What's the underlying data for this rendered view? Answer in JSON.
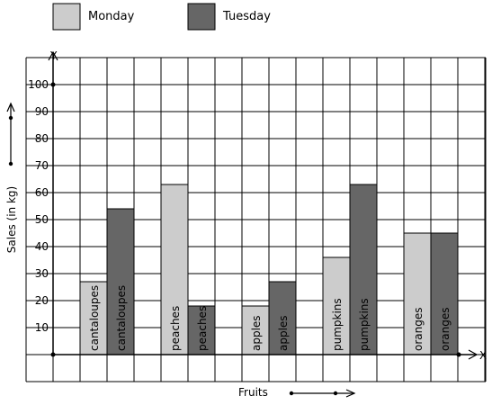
{
  "chart_data": {
    "type": "bar",
    "categories": [
      "cantaloupes",
      "peaches",
      "apples",
      "pumpkins",
      "oranges"
    ],
    "series": [
      {
        "name": "Monday",
        "values": [
          27,
          63,
          18,
          36,
          45
        ],
        "color": "#cccccc"
      },
      {
        "name": "Tuesday",
        "values": [
          54,
          18,
          27,
          63,
          45
        ],
        "color": "#666666"
      }
    ],
    "xlabel": "Fruits",
    "ylabel": "Sales (in kg)",
    "x_axis_letter": "X",
    "y_axis_letter": "Y",
    "yticks": [
      "10",
      "20",
      "30",
      "40",
      "50",
      "60",
      "70",
      "80",
      "90",
      "100"
    ],
    "ylim": [
      -10,
      110
    ],
    "grid": true,
    "legend_position": "top-left"
  }
}
